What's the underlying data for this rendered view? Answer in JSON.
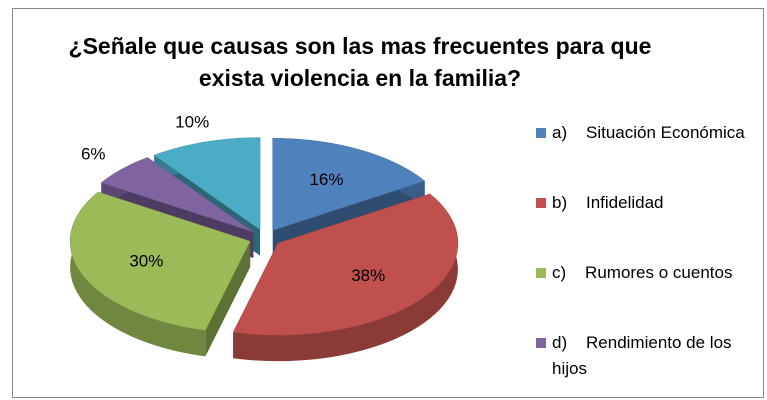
{
  "chart_data": {
    "type": "pie",
    "title": "¿Señale que causas son las mas frecuentes para que exista violencia en la familia?",
    "categories": [
      "a)    Situación Económica",
      "b)    Infidelidad",
      "c)    Rumores o cuentos",
      "d)    Rendimiento de los hijos",
      null
    ],
    "values": [
      16,
      38,
      30,
      6,
      10
    ],
    "value_labels": [
      "16%",
      "38%",
      "30%",
      "6%",
      "10%"
    ],
    "colors": [
      "#4f81bd",
      "#c0504d",
      "#9bbb59",
      "#8064a2",
      "#4bacc6"
    ],
    "legend": "right"
  }
}
